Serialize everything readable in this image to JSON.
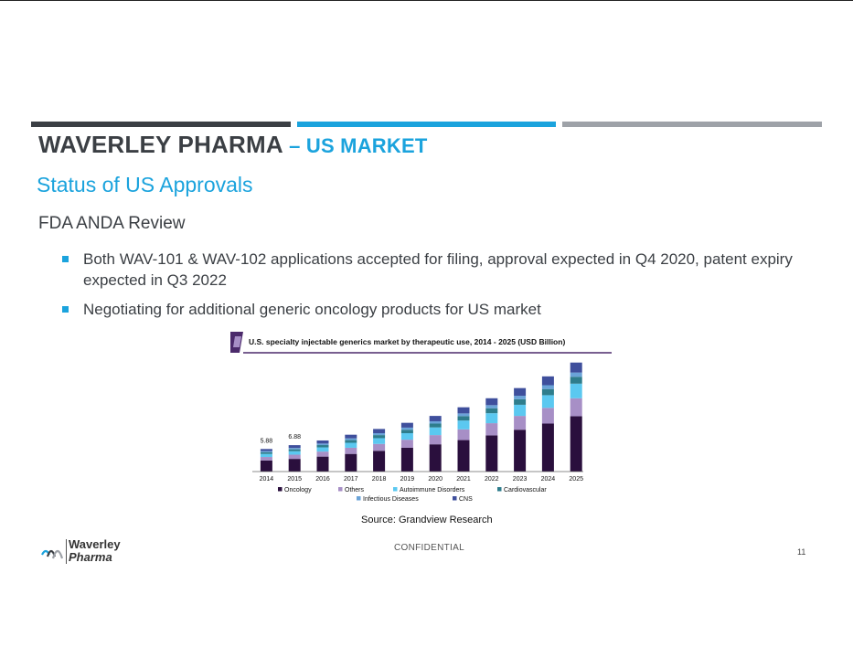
{
  "header": {
    "title_main": "WAVERLEY PHARMA",
    "title_sub": " – US MARKET",
    "subtitle": "Status of US Approvals",
    "section": "FDA ANDA Review"
  },
  "bullets": [
    "Both WAV-101 & WAV-102 applications accepted for filing, approval expected in Q4 2020, patent expiry expected in Q3 2022",
    "Negotiating for additional generic oncology products for US market"
  ],
  "chart_data": {
    "type": "bar",
    "stacked": true,
    "title": "U.S. specialty injectable generics market by therapeutic use, 2014 - 2025 (USD Billion)",
    "categories": [
      "2014",
      "2015",
      "2016",
      "2017",
      "2018",
      "2019",
      "2020",
      "2021",
      "2022",
      "2023",
      "2024",
      "2025"
    ],
    "series": [
      {
        "name": "Oncology",
        "color": "#2a0f3d",
        "values": [
          2.9,
          3.3,
          3.9,
          4.6,
          5.4,
          6.2,
          7.1,
          8.2,
          9.4,
          10.9,
          12.5,
          14.4
        ]
      },
      {
        "name": "Others",
        "color": "#a78fc6",
        "values": [
          0.9,
          1.1,
          1.3,
          1.6,
          1.8,
          2.1,
          2.4,
          2.8,
          3.2,
          3.6,
          4.1,
          4.7
        ]
      },
      {
        "name": "Autoimmune Disorders",
        "color": "#5bc8f0",
        "values": [
          0.8,
          0.9,
          1.1,
          1.3,
          1.5,
          1.7,
          2.0,
          2.3,
          2.6,
          2.9,
          3.3,
          3.8
        ]
      },
      {
        "name": "Cardiovascular",
        "color": "#2e7d8c",
        "values": [
          0.45,
          0.5,
          0.6,
          0.7,
          0.8,
          0.9,
          1.0,
          1.15,
          1.3,
          1.45,
          1.6,
          1.8
        ]
      },
      {
        "name": "Infectious Diseases",
        "color": "#6aa3d8",
        "values": [
          0.3,
          0.35,
          0.4,
          0.45,
          0.5,
          0.55,
          0.6,
          0.7,
          0.8,
          0.9,
          1.0,
          1.1
        ]
      },
      {
        "name": "CNS",
        "color": "#3f4f9c",
        "values": [
          0.53,
          0.73,
          0.8,
          0.95,
          1.1,
          1.25,
          1.4,
          1.6,
          1.8,
          2.0,
          2.3,
          2.6
        ]
      }
    ],
    "data_labels": [
      {
        "category": "2014",
        "text": "5.88"
      },
      {
        "category": "2015",
        "text": "6.88"
      }
    ],
    "ylim": [
      0,
      30
    ],
    "grid": false,
    "legend": "bottom"
  },
  "source": "Source: Grandview Research",
  "footer": {
    "logo_line1": "Waverley",
    "logo_line2": "Pharma",
    "confidential": "CONFIDENTIAL",
    "page_number": "11"
  }
}
